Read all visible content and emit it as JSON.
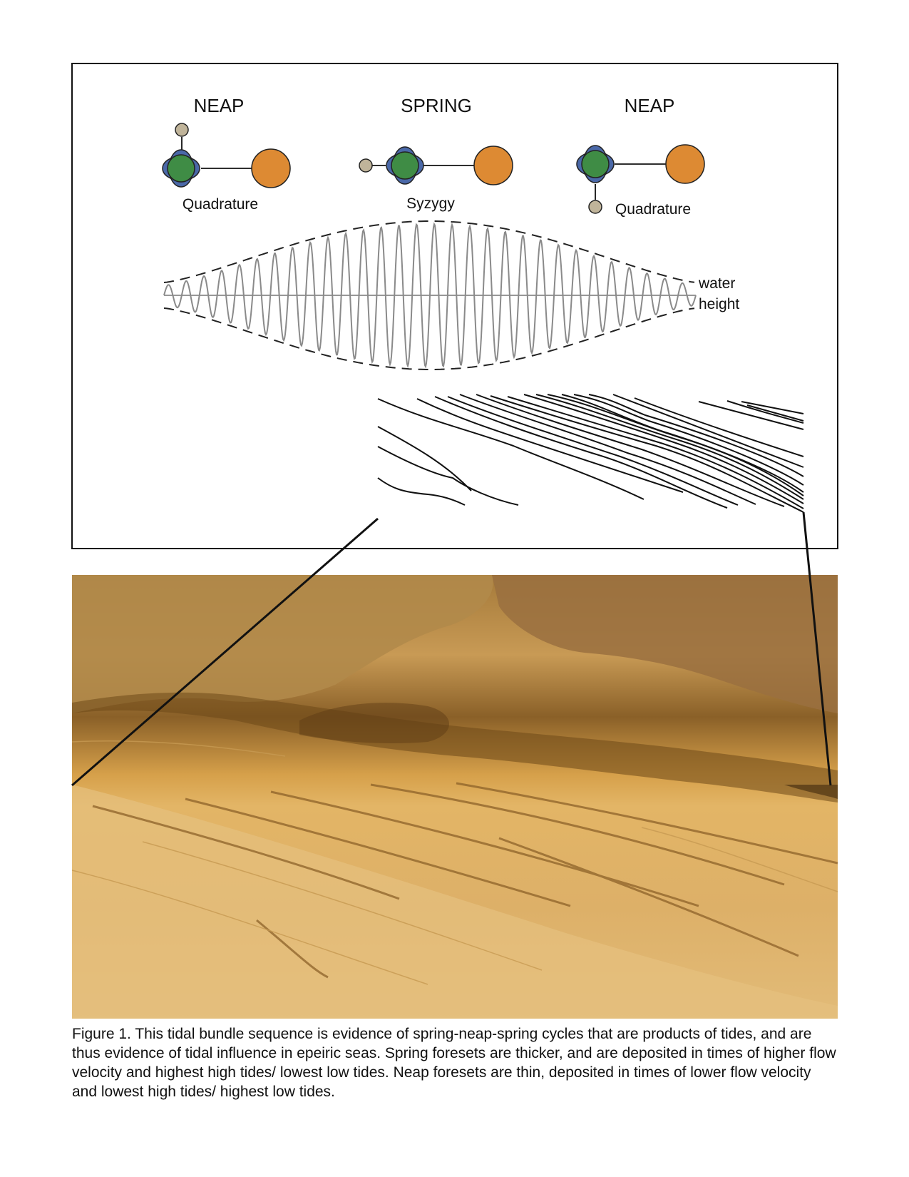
{
  "figure": {
    "phases": [
      {
        "title": "NEAP",
        "alignment": "Quadrature"
      },
      {
        "title": "SPRING",
        "alignment": "Syzygy"
      },
      {
        "title": "NEAP",
        "alignment": "Quadrature"
      }
    ],
    "wave_label_line1": "water",
    "wave_label_line2": "height",
    "colors": {
      "earth": "#3f8c45",
      "earth_water": "#4a68a8",
      "sun": "#dd8a33",
      "moon": "#c0b49a",
      "wave": "#8a8a8a",
      "envelope": "#222222",
      "sandstone": "#d9a852"
    }
  },
  "caption": "Figure 1. This tidal bundle sequence is evidence of spring-neap-spring cycles  that are products of tides, and are thus evidence of tidal influence in epeiric seas. Spring foresets are thicker, and are deposited in times of higher flow velocity and highest high tides/ lowest low tides. Neap foresets are thin, deposited in times of lower flow velocity and lowest high tides/ highest low tides."
}
